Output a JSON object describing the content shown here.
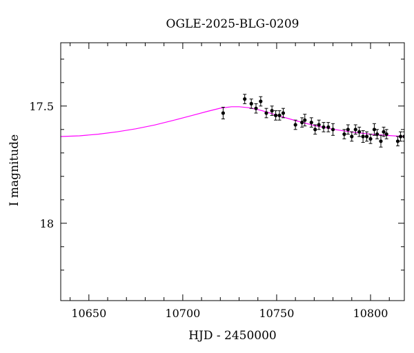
{
  "chart_data": {
    "type": "scatter",
    "title": "OGLE-2025-BLG-0209",
    "xlabel": "HJD - 2450000",
    "ylabel": "I magnitude",
    "xlim": [
      10635,
      10818
    ],
    "ylim": [
      18.33,
      17.23
    ],
    "y_inverted": true,
    "grid": false,
    "legend": "none",
    "x_major_ticks": [
      10650,
      10700,
      10750,
      10800
    ],
    "x_tick_labels": [
      "10650",
      "10700",
      "10750",
      "10800"
    ],
    "y_major_ticks": [
      17.5,
      18
    ],
    "y_tick_labels": [
      "17.5",
      "18"
    ],
    "y_minor_ticks": [
      17.3,
      17.4,
      17.6,
      17.7,
      17.8,
      17.9,
      18.1,
      18.2
    ],
    "colors": {
      "model": "#ff00ff",
      "points": "#000000",
      "frame": "#000000"
    },
    "series": [
      {
        "kind": "points",
        "x": [
          10721.5,
          10733.0,
          10736.5,
          10739.0,
          10741.5,
          10744.5,
          10747.5,
          10749.5,
          10751.5,
          10753.5,
          10760.0,
          10763.5,
          10765.0,
          10768.5,
          10770.5,
          10772.5,
          10775.0,
          10777.5,
          10780.0,
          10786.0,
          10788.0,
          10790.0,
          10792.0,
          10794.0,
          10796.0,
          10798.0,
          10800.0,
          10802.0,
          10803.5,
          10805.5,
          10807.0,
          10808.5,
          10814.5,
          10816.0,
          10818.0
        ],
        "y": [
          17.53,
          17.47,
          17.49,
          17.51,
          17.48,
          17.53,
          17.52,
          17.54,
          17.54,
          17.53,
          17.58,
          17.57,
          17.56,
          17.57,
          17.6,
          17.58,
          17.59,
          17.59,
          17.6,
          17.62,
          17.6,
          17.63,
          17.6,
          17.61,
          17.63,
          17.63,
          17.64,
          17.6,
          17.62,
          17.65,
          17.61,
          17.62,
          17.65,
          17.63,
          17.63
        ],
        "yerr": [
          0.025,
          0.02,
          0.02,
          0.02,
          0.02,
          0.02,
          0.02,
          0.02,
          0.02,
          0.02,
          0.02,
          0.02,
          0.025,
          0.02,
          0.02,
          0.02,
          0.02,
          0.02,
          0.025,
          0.02,
          0.02,
          0.02,
          0.02,
          0.02,
          0.025,
          0.02,
          0.02,
          0.025,
          0.02,
          0.025,
          0.02,
          0.02,
          0.02,
          0.02,
          0.02
        ]
      },
      {
        "kind": "model",
        "x": [
          10635,
          10645,
          10655,
          10665,
          10675,
          10685,
          10695,
          10705,
          10713,
          10720,
          10726,
          10730,
          10735,
          10740,
          10745,
          10750,
          10760,
          10770,
          10780,
          10790,
          10800,
          10810,
          10818
        ],
        "y": [
          17.63,
          17.627,
          17.62,
          17.61,
          17.597,
          17.581,
          17.561,
          17.54,
          17.523,
          17.509,
          17.503,
          17.503,
          17.507,
          17.515,
          17.526,
          17.539,
          17.562,
          17.583,
          17.599,
          17.611,
          17.62,
          17.626,
          17.63
        ]
      }
    ]
  }
}
